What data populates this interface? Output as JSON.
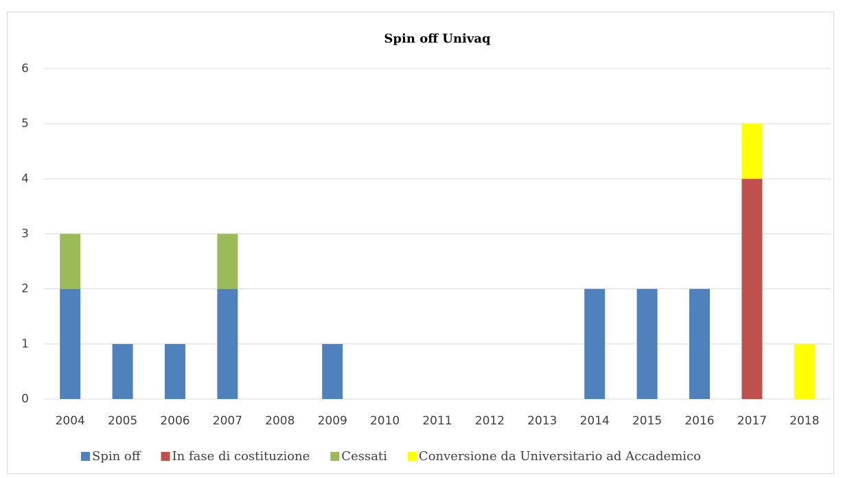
{
  "chart_data": {
    "type": "stacked_bar",
    "title": "Spin off Univaq",
    "categories": [
      "2004",
      "2005",
      "2006",
      "2007",
      "2008",
      "2009",
      "2010",
      "2011",
      "2012",
      "2013",
      "2014",
      "2015",
      "2016",
      "2017",
      "2018"
    ],
    "series": [
      {
        "name": "Spin off",
        "color": "#4f81bd",
        "values": [
          2,
          1,
          1,
          2,
          0,
          1,
          0,
          0,
          0,
          0,
          2,
          2,
          2,
          0,
          0
        ]
      },
      {
        "name": "In fase di costituzione",
        "color": "#c0504d",
        "values": [
          0,
          0,
          0,
          0,
          0,
          0,
          0,
          0,
          0,
          0,
          0,
          0,
          0,
          4,
          0
        ]
      },
      {
        "name": "Cessati",
        "color": "#9bbb59",
        "values": [
          1,
          0,
          0,
          1,
          0,
          0,
          0,
          0,
          0,
          0,
          0,
          0,
          0,
          0,
          0
        ]
      },
      {
        "name": "Conversione da Universitario ad Accademico",
        "color": "#ffff00",
        "values": [
          0,
          0,
          0,
          0,
          0,
          0,
          0,
          0,
          0,
          0,
          0,
          0,
          0,
          1,
          1
        ]
      }
    ],
    "ylim": [
      0,
      6
    ],
    "yticks": [
      0,
      1,
      2,
      3,
      4,
      5,
      6
    ],
    "grid": true,
    "legend": "bottom"
  }
}
